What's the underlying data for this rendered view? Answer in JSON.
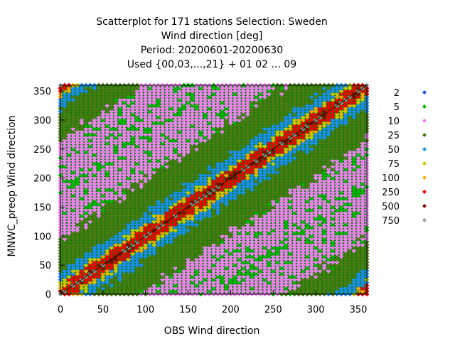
{
  "chart_data": {
    "type": "scatter",
    "title_lines": [
      "Scatterplot for  171 stations Selection: Sweden",
      "Wind direction [deg]",
      "Period: 20200601-20200630",
      "Used {00,03,...,21} + 01 02 ... 09"
    ],
    "xlabel": "OBS Wind direction",
    "ylabel": "MNWC_preop Wind direction",
    "xlim": [
      0,
      360
    ],
    "ylim": [
      0,
      360
    ],
    "xticks": [
      0,
      50,
      100,
      150,
      200,
      250,
      300,
      350
    ],
    "yticks": [
      0,
      50,
      100,
      150,
      200,
      250,
      300,
      350
    ],
    "grid": false,
    "legend_position": "right",
    "background_color": "#008000",
    "series": [
      {
        "name": "2",
        "color": "#1f4fd8",
        "max_deviation": 360
      },
      {
        "name": "5",
        "color": "#00b400",
        "max_deviation": 360
      },
      {
        "name": "10",
        "color": "#ee82ee",
        "max_deviation": 180
      },
      {
        "name": "25",
        "color": "#4b7a14",
        "max_deviation": 95
      },
      {
        "name": "50",
        "color": "#1e8cf0",
        "max_deviation": 40
      },
      {
        "name": "75",
        "color": "#c8c800",
        "max_deviation": 22
      },
      {
        "name": "100",
        "color": "#ffa500",
        "max_deviation": 17
      },
      {
        "name": "250",
        "color": "#ee0000",
        "max_deviation": 14
      },
      {
        "name": "500",
        "color": "#8b0000",
        "max_deviation": 3
      },
      {
        "name": "750",
        "color": "#9a9a9a",
        "max_deviation": 0
      }
    ],
    "diagonal_line": true
  }
}
